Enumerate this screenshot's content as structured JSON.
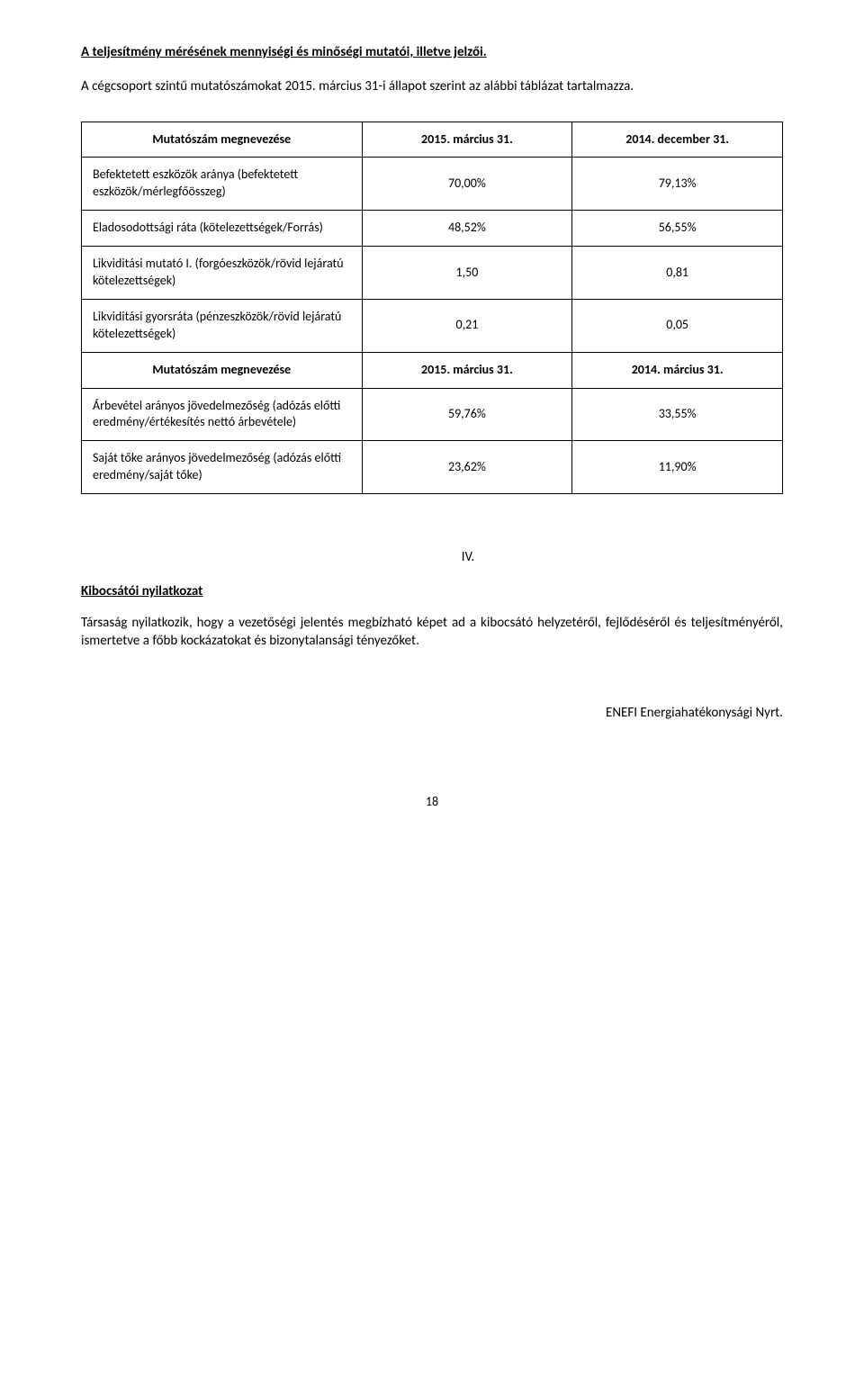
{
  "heading": "A teljesítmény mérésének mennyiségi és minőségi mutatói, illetve jelzői.",
  "intro": "A cégcsoport szintű mutatószámokat 2015. március 31-i állapot szerint az alábbi táblázat tartalmazza.",
  "table1": {
    "head": [
      "Mutatószám megnevezése",
      "2015. március 31.",
      "2014. december 31."
    ],
    "rows": [
      {
        "label": "Befektetett eszközök aránya (befektetett eszközök/mérlegfőösszeg)",
        "v1": "70,00%",
        "v2": "79,13%"
      },
      {
        "label": "Eladosodottsági ráta (kötelezettségek/Forrás)",
        "v1": "48,52%",
        "v2": "56,55%"
      },
      {
        "label": "Likviditási mutató I. (forgóeszközök/rövid lejáratú kötelezettségek)",
        "v1": "1,50",
        "v2": "0,81"
      },
      {
        "label": "Likviditási gyorsráta (pénzeszközök/rövid lejáratú kötelezettségek)",
        "v1": "0,21",
        "v2": "0,05"
      }
    ],
    "head2": [
      "Mutatószám megnevezése",
      "2015. március 31.",
      "2014. március 31."
    ],
    "rows2": [
      {
        "label": "Árbevétel arányos jövedelmezőség (adózás előtti eredmény/értékesítés nettó árbevétele)",
        "v1": "59,76%",
        "v2": "33,55%"
      },
      {
        "label": "Saját tőke arányos jövedelmezőség (adózás előtti eredmény/saját tőke)",
        "v1": "23,62%",
        "v2": "11,90%"
      }
    ]
  },
  "roman": "IV.",
  "declHeading": "Kibocsátói nyilatkozat",
  "declBody": "Társaság nyilatkozik, hogy a vezetőségi jelentés megbízható képet ad a kibocsátó helyzetéről, fejlődéséről és teljesítményéről, ismertetve a főbb kockázatokat és bizonytalansági tényezőket.",
  "company": "ENEFI Energiahatékonysági Nyrt.",
  "pageNum": "18",
  "colors": {
    "text": "#000000",
    "background": "#ffffff",
    "border": "#000000"
  },
  "fonts": {
    "body_family": "Calibri",
    "body_size_pt": 11,
    "heading_weight": "bold"
  }
}
